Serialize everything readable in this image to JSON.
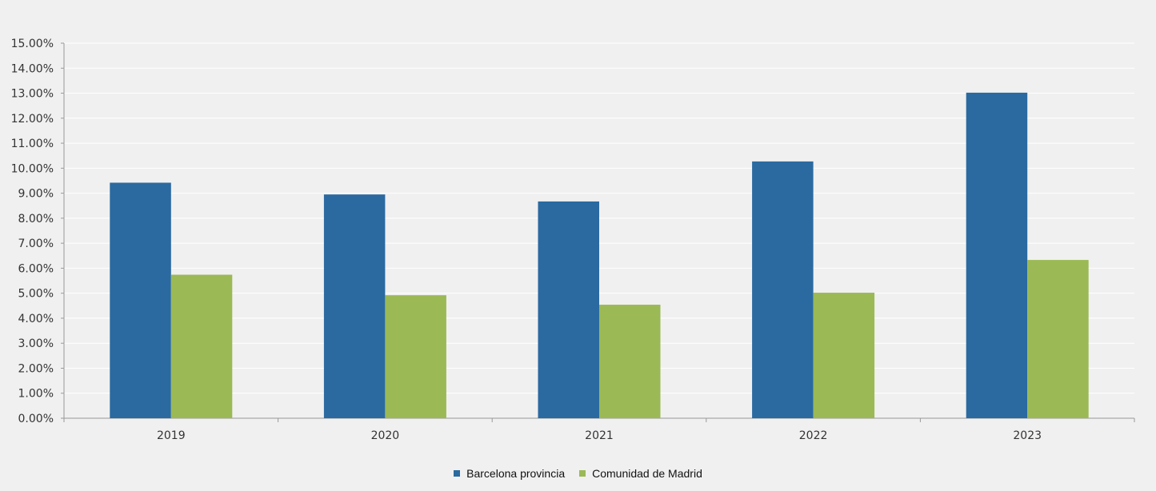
{
  "chart_data": {
    "type": "bar",
    "title": "",
    "xlabel": "",
    "ylabel": "",
    "categories": [
      "2019",
      "2020",
      "2021",
      "2022",
      "2023"
    ],
    "series": [
      {
        "name": "Barcelona provincia",
        "color": "#2a6aa1",
        "values": [
          9.42,
          8.95,
          8.67,
          10.27,
          13.02
        ]
      },
      {
        "name": "Comunidad de Madrid",
        "color": "#9bb955",
        "values": [
          5.74,
          4.92,
          4.54,
          5.02,
          6.33
        ]
      }
    ],
    "ylim": [
      0,
      15
    ],
    "yticks": [
      "0.00%",
      "1.00%",
      "2.00%",
      "3.00%",
      "4.00%",
      "5.00%",
      "6.00%",
      "7.00%",
      "8.00%",
      "9.00%",
      "10.00%",
      "11.00%",
      "12.00%",
      "13.00%",
      "14.00%",
      "15.00%"
    ],
    "grid": true,
    "legend_position": "bottom"
  }
}
